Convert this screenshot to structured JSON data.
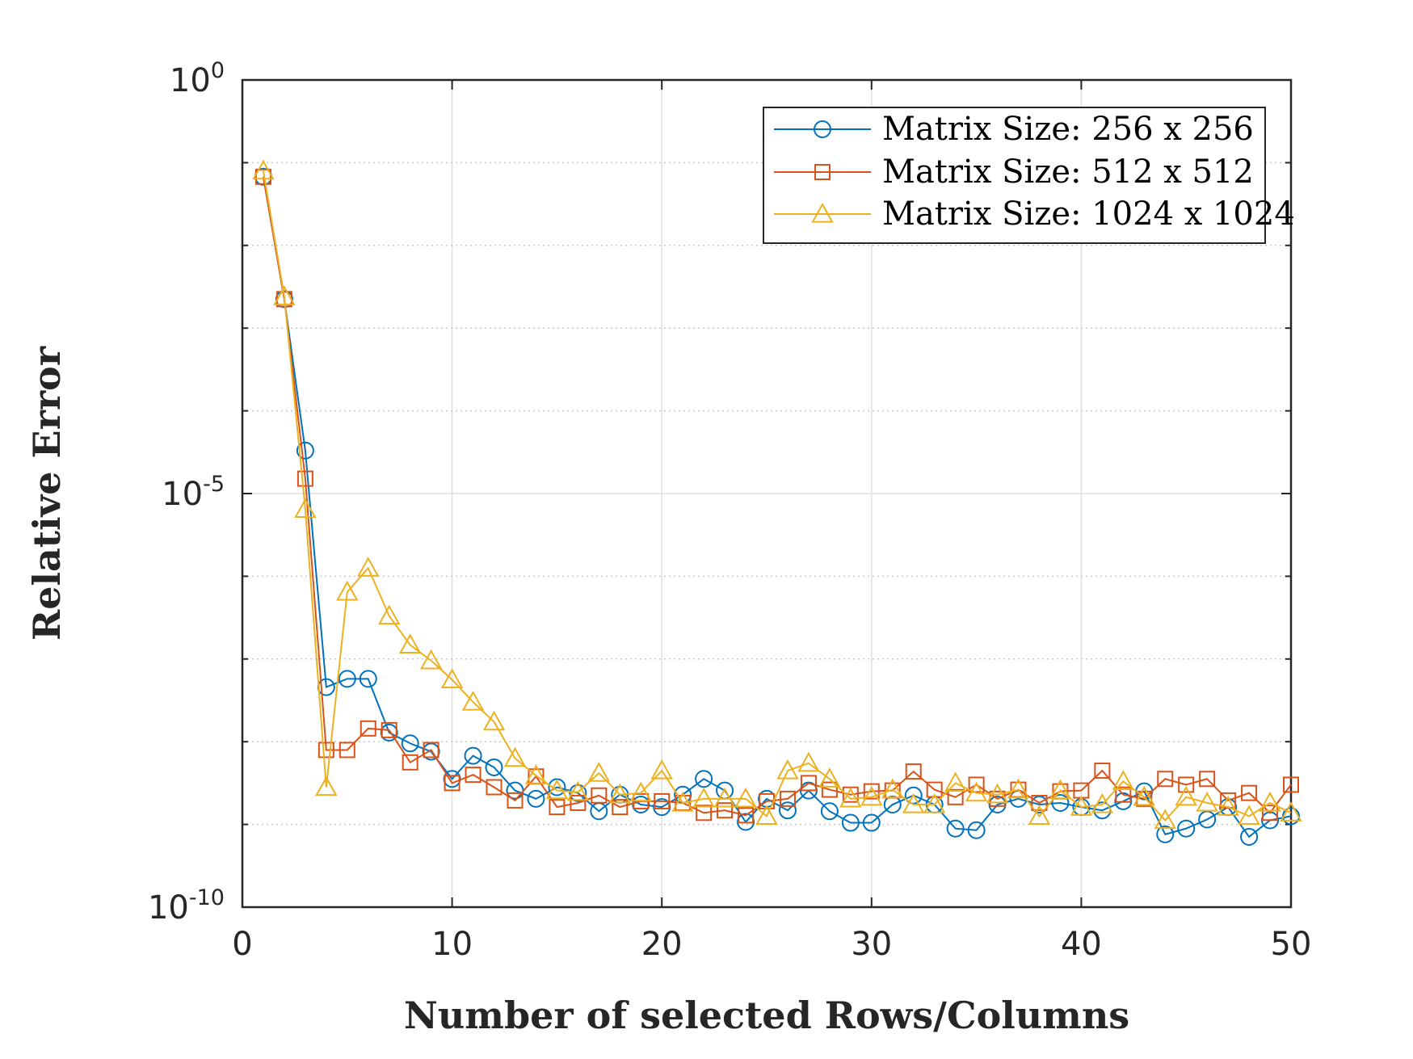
{
  "chart_data": {
    "type": "line",
    "title": "",
    "xlabel": "Number of selected Rows/Columns",
    "ylabel": "Relative Error",
    "xlim": [
      0,
      50
    ],
    "ylim_log10": [
      -10,
      0
    ],
    "yscale": "log",
    "grid": true,
    "legend_position": "top-right",
    "x_ticks": [
      0,
      10,
      20,
      30,
      40,
      50
    ],
    "y_ticks": [
      {
        "base": "10",
        "exp": "0",
        "log10": 0
      },
      {
        "base": "10",
        "exp": "-5",
        "log10": -5
      },
      {
        "base": "10",
        "exp": "-10",
        "log10": -10
      }
    ],
    "x": [
      1,
      2,
      3,
      4,
      5,
      6,
      7,
      8,
      9,
      10,
      11,
      12,
      13,
      14,
      15,
      16,
      17,
      18,
      19,
      20,
      21,
      22,
      23,
      24,
      25,
      26,
      27,
      28,
      29,
      30,
      31,
      32,
      33,
      34,
      35,
      36,
      37,
      38,
      39,
      40,
      41,
      42,
      43,
      44,
      45,
      46,
      47,
      48,
      49,
      50
    ],
    "series": [
      {
        "name": "Matrix Size: 256 x 256",
        "color": "#0072bd",
        "marker": "circle",
        "log10_values": [
          -1.17,
          -2.65,
          -4.48,
          -7.34,
          -7.24,
          -7.24,
          -7.89,
          -8.02,
          -8.12,
          -8.45,
          -8.17,
          -8.31,
          -8.59,
          -8.69,
          -8.55,
          -8.62,
          -8.84,
          -8.64,
          -8.76,
          -8.79,
          -8.64,
          -8.45,
          -8.59,
          -8.97,
          -8.69,
          -8.83,
          -8.59,
          -8.84,
          -8.98,
          -8.98,
          -8.76,
          -8.65,
          -8.76,
          -9.05,
          -9.07,
          -8.76,
          -8.69,
          -8.76,
          -8.74,
          -8.79,
          -8.83,
          -8.72,
          -8.6,
          -9.12,
          -9.05,
          -8.94,
          -8.79,
          -9.15,
          -8.95,
          -8.9
        ]
      },
      {
        "name": "Matrix Size: 512 x 512",
        "color": "#d95319",
        "marker": "square",
        "log10_values": [
          -1.17,
          -2.65,
          -4.82,
          -8.1,
          -8.1,
          -7.84,
          -7.86,
          -8.25,
          -8.1,
          -8.5,
          -8.4,
          -8.55,
          -8.71,
          -8.42,
          -8.79,
          -8.74,
          -8.65,
          -8.79,
          -8.72,
          -8.72,
          -8.74,
          -8.86,
          -8.83,
          -8.89,
          -8.72,
          -8.69,
          -8.5,
          -8.58,
          -8.64,
          -8.6,
          -8.59,
          -8.36,
          -8.58,
          -8.67,
          -8.52,
          -8.69,
          -8.58,
          -8.74,
          -8.6,
          -8.59,
          -8.35,
          -8.64,
          -8.69,
          -8.45,
          -8.52,
          -8.45,
          -8.71,
          -8.62,
          -8.86,
          -8.52
        ]
      },
      {
        "name": "Matrix Size: 1024 x 1024",
        "color": "#edb120",
        "marker": "triangle",
        "log10_values": [
          -1.1,
          -2.62,
          -5.19,
          -8.55,
          -6.19,
          -5.9,
          -6.48,
          -6.83,
          -7.02,
          -7.25,
          -7.52,
          -7.76,
          -8.2,
          -8.41,
          -8.59,
          -8.61,
          -8.38,
          -8.64,
          -8.62,
          -8.35,
          -8.74,
          -8.69,
          -8.69,
          -8.69,
          -8.9,
          -8.35,
          -8.26,
          -8.45,
          -8.69,
          -8.67,
          -8.58,
          -8.76,
          -8.76,
          -8.5,
          -8.62,
          -8.64,
          -8.58,
          -8.9,
          -8.59,
          -8.79,
          -8.76,
          -8.48,
          -8.67,
          -8.95,
          -8.67,
          -8.74,
          -8.79,
          -8.9,
          -8.74,
          -8.86
        ]
      }
    ]
  }
}
